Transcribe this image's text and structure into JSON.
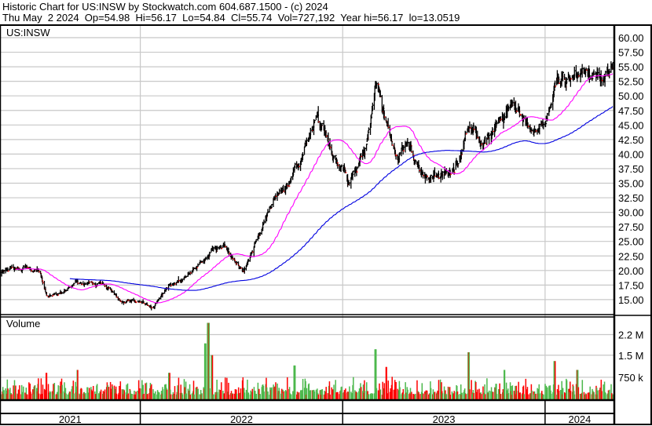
{
  "header": {
    "title": "Historic Chart for US:INSW by Stockwatch.com 604.687.1500 - (c) 2024",
    "date": "Thu May  2 2024",
    "open": "Op=54.98",
    "high": "Hi=56.17",
    "low": "Lo=54.84",
    "close": "Cl=55.74",
    "volume": "Vol=727,192",
    "year_high": "Year hi=56.17",
    "year_low": "lo=13.0519"
  },
  "chart_data": {
    "type": "ohlc",
    "symbol_label": "US:INSW",
    "volume_label": "Volume",
    "x_range": [
      "2021-04-23",
      "2024-05-02"
    ],
    "price_ylim": [
      13.0,
      61.5
    ],
    "price_ticks": [
      "15.00",
      "17.50",
      "20.00",
      "22.50",
      "25.00",
      "27.50",
      "30.00",
      "32.50",
      "35.00",
      "37.50",
      "40.00",
      "42.50",
      "45.00",
      "47.50",
      "50.00",
      "52.50",
      "55.00",
      "57.50",
      "60.00"
    ],
    "volume_ticks": [
      {
        "label": "750 k",
        "value": 750000
      },
      {
        "label": "1.5 M",
        "value": 1500000
      },
      {
        "label": "2.2 M",
        "value": 2200000
      }
    ],
    "year_labels": [
      "2021",
      "2022",
      "2023",
      "2024"
    ],
    "grid": true,
    "moving_averages": [
      {
        "period": 50,
        "color": "#ff00ff"
      },
      {
        "period": 200,
        "color": "#0000e0"
      }
    ],
    "colors": {
      "bar": "#000000",
      "down_tick": "#ff0000",
      "volume_up": "#4cb84c",
      "volume_down": "#ff0000",
      "grid": "#c8c8c8"
    },
    "close_keypoints": [
      [
        "2021-04-23",
        20.0
      ],
      [
        "2021-06-05",
        20.5
      ],
      [
        "2021-07-05",
        19.5
      ],
      [
        "2021-07-17",
        15.5
      ],
      [
        "2021-08-17",
        16.0
      ],
      [
        "2021-09-08",
        18.0
      ],
      [
        "2021-11-05",
        17.5
      ],
      [
        "2021-11-27",
        15.0
      ],
      [
        "2022-01-03",
        14.5
      ],
      [
        "2022-01-24",
        13.8
      ],
      [
        "2022-02-22",
        17.0
      ],
      [
        "2022-03-22",
        18.6
      ],
      [
        "2022-04-19",
        22.0
      ],
      [
        "2022-06-01",
        24.4
      ],
      [
        "2022-06-15",
        22.7
      ],
      [
        "2022-07-06",
        19.5
      ],
      [
        "2022-07-28",
        24.7
      ],
      [
        "2022-08-18",
        29.4
      ],
      [
        "2022-09-09",
        33.5
      ],
      [
        "2022-09-30",
        36.0
      ],
      [
        "2022-10-22",
        40.9
      ],
      [
        "2022-11-12",
        46.3
      ],
      [
        "2022-11-26",
        44.5
      ],
      [
        "2022-12-18",
        39.5
      ],
      [
        "2023-01-03",
        38.0
      ],
      [
        "2023-01-10",
        34.8
      ],
      [
        "2023-01-28",
        38.2
      ],
      [
        "2023-02-18",
        45.0
      ],
      [
        "2023-03-04",
        52.0
      ],
      [
        "2023-03-11",
        50.0
      ],
      [
        "2023-03-14",
        47.6
      ],
      [
        "2023-03-25",
        43.0
      ],
      [
        "2023-04-08",
        38.8
      ],
      [
        "2023-04-29",
        41.5
      ],
      [
        "2023-05-20",
        36.8
      ],
      [
        "2023-06-17",
        36.0
      ],
      [
        "2023-07-15",
        36.5
      ],
      [
        "2023-07-29",
        38.8
      ],
      [
        "2023-08-12",
        45.5
      ],
      [
        "2023-08-26",
        44.0
      ],
      [
        "2023-09-16",
        41.5
      ],
      [
        "2023-10-07",
        45.0
      ],
      [
        "2023-11-01",
        49.0
      ],
      [
        "2023-11-25",
        46.3
      ],
      [
        "2023-12-16",
        43.6
      ],
      [
        "2024-01-02",
        46.0
      ],
      [
        "2024-01-22",
        53.0
      ],
      [
        "2024-02-12",
        53.0
      ],
      [
        "2024-03-11",
        53.7
      ],
      [
        "2024-04-08",
        53.0
      ],
      [
        "2024-05-02",
        55.74
      ]
    ],
    "volume_base": 350000,
    "volume_spikes": [
      [
        "2021-07-16",
        900000
      ],
      [
        "2021-09-10",
        1000000
      ],
      [
        "2022-02-22",
        900000
      ],
      [
        "2022-04-28",
        1900000
      ],
      [
        "2022-05-03",
        2600000
      ],
      [
        "2022-05-04",
        2600000
      ],
      [
        "2022-05-10",
        1500000
      ],
      [
        "2022-10-06",
        1150000
      ],
      [
        "2023-03-01",
        1700000
      ],
      [
        "2023-03-20",
        1100000
      ],
      [
        "2023-08-16",
        1600000
      ],
      [
        "2023-10-20",
        1000000
      ],
      [
        "2024-01-18",
        1300000
      ],
      [
        "2024-02-28",
        1000000
      ]
    ]
  }
}
